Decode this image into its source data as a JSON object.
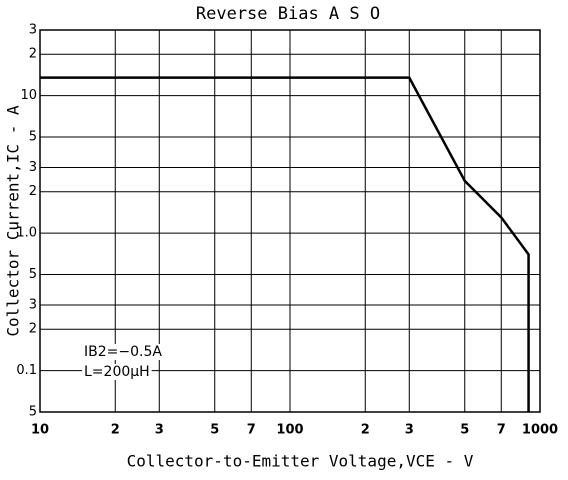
{
  "chart_data": {
    "type": "line",
    "title": "Reverse Bias A S O",
    "x_label": "Collector-to-Emitter Voltage,VCE - V",
    "y_label": "Collector Current,IC - A",
    "annotations": [
      "IB2=−0.5A",
      "L=200μH"
    ],
    "log_x": true,
    "log_y": true,
    "grid": true,
    "xlim": [
      10,
      1000
    ],
    "ylim": [
      0.05,
      30
    ],
    "xticks": [
      10,
      {
        "value": 20,
        "label": "2"
      },
      {
        "value": 30,
        "label": "3"
      },
      {
        "value": 50,
        "label": "5"
      },
      {
        "value": 70,
        "label": "7"
      },
      100,
      {
        "value": 200,
        "label": "2"
      },
      {
        "value": 300,
        "label": "3"
      },
      {
        "value": 500,
        "label": "5"
      },
      {
        "value": 700,
        "label": "7"
      },
      1000
    ],
    "yticks": [
      {
        "value": 0.05,
        "label": "5"
      },
      0.1,
      {
        "value": 0.2,
        "label": "2"
      },
      {
        "value": 0.3,
        "label": "3"
      },
      {
        "value": 0.5,
        "label": "5"
      },
      {
        "value": 1,
        "label": "1.0"
      },
      2,
      3,
      5,
      10,
      {
        "value": 20,
        "label": "2"
      },
      {
        "value": 30,
        "label": "3"
      }
    ],
    "series": [
      {
        "color": "#000000",
        "x": [
          10,
          300,
          500,
          700,
          900,
          900
        ],
        "values": [
          13.5,
          13.5,
          2.4,
          1.3,
          0.7,
          0.05
        ]
      }
    ]
  }
}
